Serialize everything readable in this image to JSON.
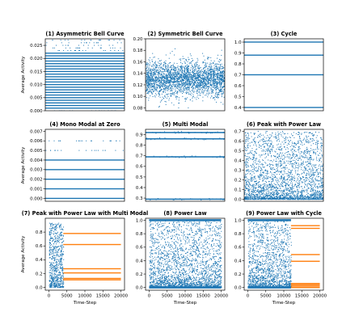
{
  "colors": {
    "blue": "#1f77b4",
    "orange": "#ff7f0e",
    "axis": "#000000"
  },
  "chart_data": [
    {
      "id": 1,
      "type": "scatter",
      "title": "(1) Asymmetric Bell Curve",
      "xlabel": "",
      "ylabel": "Average Activity",
      "xlim": [
        0,
        20000
      ],
      "ylim": [
        0,
        0.0275
      ],
      "yticks": [
        0.0,
        0.005,
        0.01,
        0.015,
        0.02,
        0.025
      ],
      "ytick_labels": [
        "0.000",
        "0.005",
        "0.010",
        "0.015",
        "0.020",
        "0.025"
      ],
      "xticks": [],
      "xtick_labels": [],
      "series": [
        {
          "pattern": "levels",
          "color": "blue",
          "x_range": [
            0,
            20000
          ],
          "levels": [
            0.001,
            0.002,
            0.003,
            0.004,
            0.005,
            0.006,
            0.007,
            0.008,
            0.009,
            0.01,
            0.011,
            0.012,
            0.013,
            0.014,
            0.015,
            0.016,
            0.017,
            0.018,
            0.019,
            0.02,
            0.021,
            0.022
          ],
          "sparse_levels": [
            0.0,
            0.023,
            0.024,
            0.025,
            0.026,
            0.027
          ]
        }
      ]
    },
    {
      "id": 2,
      "type": "scatter",
      "title": "(2) Symmetric Bell Curve",
      "xlabel": "",
      "ylabel": "",
      "xlim": [
        0,
        20000
      ],
      "ylim": [
        0.075,
        0.2
      ],
      "yticks": [
        0.08,
        0.1,
        0.12,
        0.14,
        0.16,
        0.18,
        0.2
      ],
      "ytick_labels": [
        "0.08",
        "0.10",
        "0.12",
        "0.14",
        "0.16",
        "0.18",
        "0.20"
      ],
      "xticks": [],
      "xtick_labels": [],
      "series": [
        {
          "pattern": "noise",
          "color": "blue",
          "x_range": [
            0,
            20000
          ],
          "center": 0.13,
          "spread": 0.015,
          "min": 0.08,
          "max": 0.195
        }
      ]
    },
    {
      "id": 3,
      "type": "scatter",
      "title": "(3) Cycle",
      "xlabel": "",
      "ylabel": "",
      "xlim": [
        0,
        20000
      ],
      "ylim": [
        0.37,
        1.03
      ],
      "yticks": [
        0.4,
        0.5,
        0.6,
        0.7,
        0.8,
        0.9,
        1.0
      ],
      "ytick_labels": [
        "0.4",
        "0.5",
        "0.6",
        "0.7",
        "0.8",
        "0.9",
        "1.0"
      ],
      "xticks": [],
      "xtick_labels": [],
      "series": [
        {
          "pattern": "levels",
          "color": "blue",
          "x_range": [
            0,
            20000
          ],
          "levels": [
            0.4,
            0.7,
            0.88,
            1.0
          ],
          "sparse_levels": []
        }
      ]
    },
    {
      "id": 4,
      "type": "scatter",
      "title": "(4) Mono Modal at Zero",
      "xlabel": "",
      "ylabel": "Average Activity",
      "xlim": [
        0,
        20000
      ],
      "ylim": [
        -0.0003,
        0.0072
      ],
      "yticks": [
        0.0,
        0.001,
        0.002,
        0.003,
        0.004,
        0.005,
        0.006,
        0.007
      ],
      "ytick_labels": [
        "0.000",
        "0.001",
        "0.002",
        "0.003",
        "0.004",
        "0.005",
        "0.006",
        "0.007"
      ],
      "xticks": [],
      "xtick_labels": [],
      "series": [
        {
          "pattern": "levels",
          "color": "blue",
          "x_range": [
            0,
            20000
          ],
          "levels": [
            0.0,
            0.001,
            0.002,
            0.003,
            0.004
          ],
          "sparse_levels": [
            0.005,
            0.006
          ]
        }
      ]
    },
    {
      "id": 5,
      "type": "scatter",
      "title": "(5) Multi Modal",
      "xlabel": "",
      "ylabel": "",
      "xlim": [
        0,
        20000
      ],
      "ylim": [
        0.27,
        0.95
      ],
      "yticks": [
        0.3,
        0.4,
        0.5,
        0.6,
        0.7,
        0.8,
        0.9
      ],
      "ytick_labels": [
        "0.3",
        "0.4",
        "0.5",
        "0.6",
        "0.7",
        "0.8",
        "0.9"
      ],
      "xticks": [],
      "xtick_labels": [],
      "series": [
        {
          "pattern": "bands",
          "color": "blue",
          "x_range": [
            0,
            20000
          ],
          "bands": [
            [
              0.29,
              0.006
            ],
            [
              0.69,
              0.006
            ],
            [
              0.86,
              0.006
            ],
            [
              0.92,
              0.006
            ]
          ]
        }
      ]
    },
    {
      "id": 6,
      "type": "scatter",
      "title": "(6) Peak with Power Law",
      "xlabel": "",
      "ylabel": "",
      "xlim": [
        0,
        20000
      ],
      "ylim": [
        -0.02,
        0.72
      ],
      "yticks": [
        0.0,
        0.1,
        0.2,
        0.3,
        0.4,
        0.5,
        0.6,
        0.7
      ],
      "ytick_labels": [
        "0.0",
        "0.1",
        "0.2",
        "0.3",
        "0.4",
        "0.5",
        "0.6",
        "0.7"
      ],
      "xticks": [],
      "xtick_labels": [],
      "series": [
        {
          "pattern": "powerlaw",
          "color": "blue",
          "x_range": [
            0,
            20000
          ],
          "min": 0.0,
          "max": 0.7,
          "exponent": 2.2
        }
      ]
    },
    {
      "id": 7,
      "type": "scatter",
      "title": "(7) Peak with Power Law with Multi Modal",
      "xlabel": "Time-Step",
      "ylabel": "Average Activity",
      "xlim": [
        -1000,
        21000
      ],
      "ylim": [
        -0.04,
        1.0
      ],
      "yticks": [
        0.0,
        0.2,
        0.4,
        0.6,
        0.8
      ],
      "ytick_labels": [
        "0.0",
        "0.2",
        "0.4",
        "0.6",
        "0.8"
      ],
      "xticks": [
        0,
        5000,
        10000,
        15000,
        20000
      ],
      "xtick_labels": [
        "0",
        "5000",
        "10000",
        "15000",
        "20000"
      ],
      "series": [
        {
          "pattern": "powerlaw",
          "color": "blue",
          "x_range": [
            0,
            4000
          ],
          "min": 0.0,
          "max": 0.93,
          "exponent": 1.5
        },
        {
          "pattern": "levels",
          "color": "orange",
          "x_range": [
            4000,
            20000
          ],
          "levels": [
            0.11,
            0.13,
            0.21,
            0.27,
            0.62,
            0.78
          ],
          "sparse_levels": []
        }
      ]
    },
    {
      "id": 8,
      "type": "scatter",
      "title": "(8) Power Law",
      "xlabel": "Time-Step",
      "ylabel": "",
      "xlim": [
        -1000,
        21000
      ],
      "ylim": [
        -0.04,
        1.03
      ],
      "yticks": [
        0.0,
        0.2,
        0.4,
        0.6,
        0.8,
        1.0
      ],
      "ytick_labels": [
        "0.0",
        "0.2",
        "0.4",
        "0.6",
        "0.8",
        "1.0"
      ],
      "xticks": [
        0,
        5000,
        10000,
        15000,
        20000
      ],
      "xtick_labels": [
        "0",
        "5000",
        "10000",
        "15000",
        "20000"
      ],
      "series": [
        {
          "pattern": "powerlaw_top",
          "color": "blue",
          "x_range": [
            0,
            20000
          ],
          "min": 0.0,
          "max": 1.0,
          "exponent": 2.5
        }
      ]
    },
    {
      "id": 9,
      "type": "scatter",
      "title": "(9) Power Law with Cycle",
      "xlabel": "Time-Step",
      "ylabel": "",
      "xlim": [
        -1000,
        21000
      ],
      "ylim": [
        -0.04,
        1.03
      ],
      "yticks": [
        0.0,
        0.2,
        0.4,
        0.6,
        0.8,
        1.0
      ],
      "ytick_labels": [
        "0.0",
        "0.2",
        "0.4",
        "0.6",
        "0.8",
        "1.0"
      ],
      "xticks": [
        0,
        5000,
        10000,
        15000,
        20000
      ],
      "xtick_labels": [
        "0",
        "5000",
        "10000",
        "15000",
        "20000"
      ],
      "series": [
        {
          "pattern": "powerlaw_top",
          "color": "blue",
          "x_range": [
            0,
            12000
          ],
          "min": 0.0,
          "max": 1.0,
          "exponent": 2.5
        },
        {
          "pattern": "levels",
          "color": "orange",
          "x_range": [
            12000,
            20000
          ],
          "levels": [
            0.0,
            0.02,
            0.04,
            0.06,
            0.39,
            0.49,
            0.88,
            0.92
          ],
          "sparse_levels": []
        }
      ]
    }
  ]
}
